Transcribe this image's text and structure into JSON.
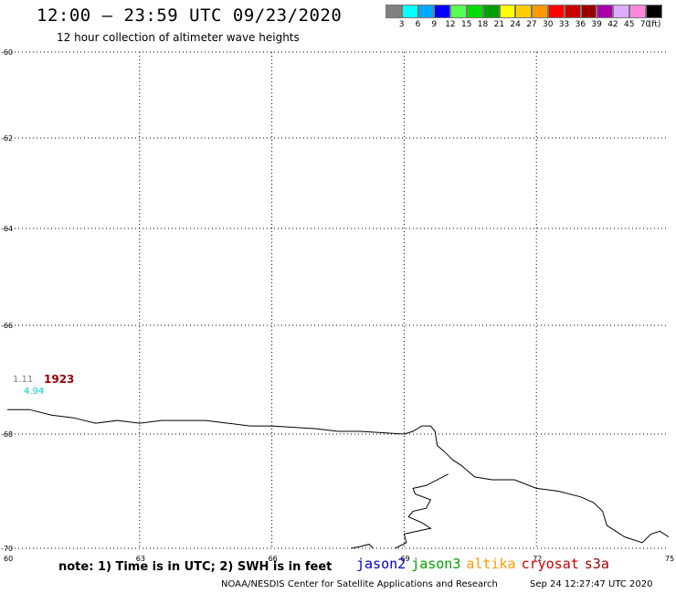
{
  "title": "12:00 – 23:59 UTC 09/23/2020",
  "subtitle": "12 hour collection of altimeter wave heights",
  "colorbar": {
    "colors": [
      "#808080",
      "#00ffff",
      "#00aaff",
      "#0000ff",
      "#55ff55",
      "#00dd00",
      "#00a000",
      "#ffff00",
      "#ffcc00",
      "#ff9900",
      "#ff0000",
      "#cc0000",
      "#990000",
      "#aa00aa",
      "#ddaaff",
      "#ff88dd",
      "#000000"
    ],
    "labels": [
      "3",
      "6",
      "9",
      "12",
      "15",
      "18",
      "21",
      "24",
      "27",
      "30",
      "33",
      "36",
      "39",
      "42",
      "45",
      "70"
    ],
    "unit": "(ft)"
  },
  "map": {
    "lon_range": [
      60,
      75
    ],
    "lat_range": [
      -60,
      -70
    ],
    "lon_ticks": [
      {
        "value": 60,
        "label": "60"
      },
      {
        "value": 63,
        "label": "63"
      },
      {
        "value": 66,
        "label": "66"
      },
      {
        "value": 69,
        "label": "69"
      },
      {
        "value": 72,
        "label": "72"
      },
      {
        "value": 75,
        "label": "75"
      }
    ],
    "lat_ticks": [
      {
        "value": -60,
        "label": "-60"
      },
      {
        "value": -62,
        "label": "-62"
      },
      {
        "value": -64,
        "label": "-64"
      },
      {
        "value": -66,
        "label": "-66"
      },
      {
        "value": -68,
        "label": "-68"
      },
      {
        "value": -70,
        "label": "-70"
      }
    ],
    "coastline": [
      [
        60.0,
        -67.55
      ],
      [
        60.5,
        -67.55
      ],
      [
        61.0,
        -67.65
      ],
      [
        61.5,
        -67.7
      ],
      [
        62.0,
        -67.8
      ],
      [
        62.5,
        -67.75
      ],
      [
        63.0,
        -67.8
      ],
      [
        63.5,
        -67.75
      ],
      [
        64.5,
        -67.75
      ],
      [
        65.0,
        -67.8
      ],
      [
        65.5,
        -67.85
      ],
      [
        66.0,
        -67.85
      ],
      [
        67.0,
        -67.9
      ],
      [
        67.5,
        -67.95
      ],
      [
        68.0,
        -67.95
      ],
      [
        69.0,
        -68.0
      ],
      [
        69.2,
        -67.95
      ],
      [
        69.4,
        -67.85
      ],
      [
        69.6,
        -67.85
      ],
      [
        69.7,
        -67.95
      ],
      [
        69.75,
        -68.2
      ],
      [
        69.9,
        -68.3
      ],
      [
        70.1,
        -68.45
      ],
      [
        70.3,
        -68.55
      ],
      [
        70.6,
        -68.75
      ],
      [
        71.0,
        -68.8
      ],
      [
        71.5,
        -68.8
      ],
      [
        72.0,
        -68.95
      ],
      [
        72.5,
        -69.0
      ],
      [
        73.0,
        -69.1
      ],
      [
        73.3,
        -69.2
      ],
      [
        73.5,
        -69.35
      ],
      [
        73.6,
        -69.6
      ],
      [
        73.8,
        -69.7
      ],
      [
        74.0,
        -69.8
      ],
      [
        74.4,
        -69.9
      ],
      [
        74.6,
        -69.75
      ],
      [
        74.8,
        -69.7
      ],
      [
        75.0,
        -69.8
      ]
    ],
    "coastline2": [
      [
        70.0,
        -68.7
      ],
      [
        69.5,
        -68.9
      ],
      [
        69.2,
        -68.95
      ],
      [
        69.25,
        -69.05
      ],
      [
        69.6,
        -69.15
      ],
      [
        69.5,
        -69.3
      ],
      [
        69.2,
        -69.35
      ],
      [
        69.1,
        -69.45
      ],
      [
        69.4,
        -69.55
      ],
      [
        69.6,
        -69.65
      ],
      [
        69.3,
        -69.7
      ],
      [
        69.0,
        -69.75
      ],
      [
        69.05,
        -69.9
      ],
      [
        68.8,
        -70.0
      ]
    ],
    "coastline3": [
      [
        67.8,
        -70.0
      ],
      [
        68.0,
        -69.97
      ],
      [
        68.2,
        -69.93
      ],
      [
        68.3,
        -70.0
      ]
    ]
  },
  "measurement": {
    "wind": "1.11",
    "wave": "4.94",
    "time": "1923",
    "wind_color": "#808080",
    "wave_color": "#00cccc",
    "time_color": "#990000"
  },
  "note": "note: 1) Time is in UTC; 2) SWH is in feet",
  "satellites": [
    {
      "name": "jason2",
      "color": "#0000cc"
    },
    {
      "name": "jason3",
      "color": "#00a000"
    },
    {
      "name": "altika",
      "color": "#ff9900"
    },
    {
      "name": "cryosat",
      "color": "#cc0000"
    },
    {
      "name": "s3a",
      "color": "#990000"
    }
  ],
  "credit": "NOAA/NESDIS Center for Satellite Applications and Research",
  "timestamp": "Sep 24 12:27:47 UTC 2020"
}
